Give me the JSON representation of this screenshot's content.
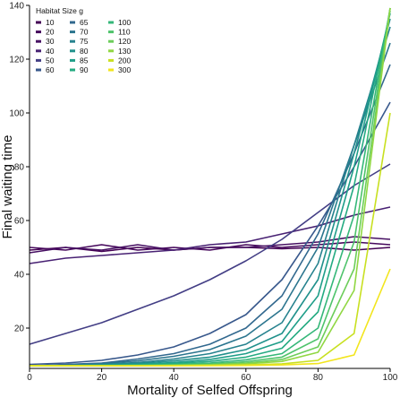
{
  "chart_data": {
    "type": "line",
    "xlabel": "Mortality of Selfed Offspring",
    "ylabel": "Final waiting time",
    "xlim": [
      0,
      100
    ],
    "ylim": [
      5,
      140
    ],
    "xticks": [
      0,
      20,
      40,
      60,
      80,
      100
    ],
    "yticks": [
      20,
      40,
      60,
      80,
      100,
      120,
      140
    ],
    "grid": false,
    "legend": {
      "title": "Habitat Size g",
      "placement": "top-left",
      "columns": 3
    },
    "series": [
      {
        "name": "10",
        "color": "#440154",
        "points": [
          [
            0,
            49
          ],
          [
            10,
            50
          ],
          [
            20,
            48.5
          ],
          [
            30,
            50
          ],
          [
            40,
            49
          ],
          [
            50,
            50
          ],
          [
            60,
            50
          ],
          [
            70,
            49.5
          ],
          [
            80,
            50
          ],
          [
            90,
            49
          ],
          [
            100,
            50
          ]
        ]
      },
      {
        "name": "20",
        "color": "#46085c",
        "points": [
          [
            0,
            50
          ],
          [
            10,
            49
          ],
          [
            20,
            51
          ],
          [
            30,
            49
          ],
          [
            40,
            50
          ],
          [
            50,
            49
          ],
          [
            60,
            51
          ],
          [
            70,
            50
          ],
          [
            80,
            51
          ],
          [
            90,
            52
          ],
          [
            100,
            51
          ]
        ]
      },
      {
        "name": "30",
        "color": "#471063",
        "points": [
          [
            0,
            48
          ],
          [
            10,
            50
          ],
          [
            20,
            49
          ],
          [
            30,
            51
          ],
          [
            40,
            49
          ],
          [
            50,
            50
          ],
          [
            60,
            50
          ],
          [
            70,
            51
          ],
          [
            80,
            52
          ],
          [
            90,
            54
          ],
          [
            100,
            53
          ]
        ]
      },
      {
        "name": "40",
        "color": "#482173",
        "points": [
          [
            0,
            44
          ],
          [
            10,
            46
          ],
          [
            20,
            47
          ],
          [
            30,
            48
          ],
          [
            40,
            49
          ],
          [
            50,
            51
          ],
          [
            60,
            52
          ],
          [
            70,
            55
          ],
          [
            80,
            58
          ],
          [
            90,
            62
          ],
          [
            100,
            65
          ]
        ]
      },
      {
        "name": "50",
        "color": "#433e85",
        "points": [
          [
            0,
            14
          ],
          [
            10,
            18
          ],
          [
            20,
            22
          ],
          [
            30,
            27
          ],
          [
            40,
            32
          ],
          [
            50,
            38
          ],
          [
            60,
            45
          ],
          [
            70,
            53
          ],
          [
            80,
            63
          ],
          [
            90,
            73
          ],
          [
            100,
            81
          ]
        ]
      },
      {
        "name": "60",
        "color": "#38588c",
        "points": [
          [
            0,
            6.5
          ],
          [
            10,
            7
          ],
          [
            20,
            8
          ],
          [
            30,
            10
          ],
          [
            40,
            13
          ],
          [
            50,
            18
          ],
          [
            60,
            25
          ],
          [
            70,
            38
          ],
          [
            80,
            58
          ],
          [
            90,
            80
          ],
          [
            100,
            104
          ]
        ]
      },
      {
        "name": "65",
        "color": "#31688e",
        "points": [
          [
            0,
            6
          ],
          [
            10,
            6.5
          ],
          [
            20,
            7
          ],
          [
            30,
            8.5
          ],
          [
            40,
            10.5
          ],
          [
            50,
            14
          ],
          [
            60,
            20
          ],
          [
            70,
            32
          ],
          [
            80,
            55
          ],
          [
            90,
            85
          ],
          [
            100,
            118
          ]
        ]
      },
      {
        "name": "70",
        "color": "#2b758e",
        "points": [
          [
            0,
            6
          ],
          [
            10,
            6.2
          ],
          [
            20,
            6.8
          ],
          [
            30,
            7.8
          ],
          [
            40,
            9.5
          ],
          [
            50,
            12
          ],
          [
            60,
            17
          ],
          [
            70,
            27
          ],
          [
            80,
            50
          ],
          [
            90,
            88
          ],
          [
            100,
            126
          ]
        ]
      },
      {
        "name": "75",
        "color": "#26828e",
        "points": [
          [
            0,
            6
          ],
          [
            10,
            6.1
          ],
          [
            20,
            6.5
          ],
          [
            30,
            7.2
          ],
          [
            40,
            8.5
          ],
          [
            50,
            10.5
          ],
          [
            60,
            14
          ],
          [
            70,
            22
          ],
          [
            80,
            44
          ],
          [
            90,
            88
          ],
          [
            100,
            132
          ]
        ]
      },
      {
        "name": "80",
        "color": "#21918c",
        "points": [
          [
            0,
            6
          ],
          [
            10,
            6
          ],
          [
            20,
            6.3
          ],
          [
            30,
            6.8
          ],
          [
            40,
            7.8
          ],
          [
            50,
            9.2
          ],
          [
            60,
            12
          ],
          [
            70,
            18
          ],
          [
            80,
            38
          ],
          [
            90,
            85
          ],
          [
            100,
            135
          ]
        ]
      },
      {
        "name": "85",
        "color": "#1f9e89",
        "points": [
          [
            0,
            6
          ],
          [
            10,
            6
          ],
          [
            20,
            6.2
          ],
          [
            30,
            6.5
          ],
          [
            40,
            7.2
          ],
          [
            50,
            8.3
          ],
          [
            60,
            10.5
          ],
          [
            70,
            15
          ],
          [
            80,
            32
          ],
          [
            90,
            80
          ],
          [
            100,
            137
          ]
        ]
      },
      {
        "name": "90",
        "color": "#25ab82",
        "points": [
          [
            0,
            6
          ],
          [
            10,
            6
          ],
          [
            20,
            6.1
          ],
          [
            30,
            6.3
          ],
          [
            40,
            6.8
          ],
          [
            50,
            7.6
          ],
          [
            60,
            9.2
          ],
          [
            70,
            12.5
          ],
          [
            80,
            26
          ],
          [
            90,
            73
          ],
          [
            100,
            138
          ]
        ]
      },
      {
        "name": "100",
        "color": "#35b779",
        "points": [
          [
            0,
            6
          ],
          [
            10,
            6
          ],
          [
            20,
            6
          ],
          [
            30,
            6.2
          ],
          [
            40,
            6.5
          ],
          [
            50,
            7
          ],
          [
            60,
            8.2
          ],
          [
            70,
            10.5
          ],
          [
            80,
            20
          ],
          [
            90,
            62
          ],
          [
            100,
            139
          ]
        ]
      },
      {
        "name": "110",
        "color": "#4ec36b",
        "points": [
          [
            0,
            6
          ],
          [
            10,
            6
          ],
          [
            20,
            6
          ],
          [
            30,
            6.1
          ],
          [
            40,
            6.3
          ],
          [
            50,
            6.6
          ],
          [
            60,
            7.5
          ],
          [
            70,
            9.2
          ],
          [
            80,
            16
          ],
          [
            90,
            52
          ],
          [
            100,
            139
          ]
        ]
      },
      {
        "name": "120",
        "color": "#6ccd5a",
        "points": [
          [
            0,
            6
          ],
          [
            10,
            6
          ],
          [
            20,
            6
          ],
          [
            30,
            6
          ],
          [
            40,
            6.2
          ],
          [
            50,
            6.4
          ],
          [
            60,
            7
          ],
          [
            70,
            8.3
          ],
          [
            80,
            13
          ],
          [
            90,
            42
          ],
          [
            100,
            139
          ]
        ]
      },
      {
        "name": "130",
        "color": "#90d743",
        "points": [
          [
            0,
            6
          ],
          [
            10,
            6
          ],
          [
            20,
            6
          ],
          [
            30,
            6
          ],
          [
            40,
            6.1
          ],
          [
            50,
            6.3
          ],
          [
            60,
            6.7
          ],
          [
            70,
            7.6
          ],
          [
            80,
            11
          ],
          [
            90,
            34
          ],
          [
            100,
            139
          ]
        ]
      },
      {
        "name": "200",
        "color": "#c8e020",
        "points": [
          [
            0,
            6
          ],
          [
            10,
            6
          ],
          [
            20,
            6
          ],
          [
            30,
            6
          ],
          [
            40,
            6
          ],
          [
            50,
            6.1
          ],
          [
            60,
            6.3
          ],
          [
            70,
            6.7
          ],
          [
            80,
            8
          ],
          [
            90,
            18
          ],
          [
            100,
            100
          ]
        ]
      },
      {
        "name": "300",
        "color": "#f2e51d",
        "points": [
          [
            0,
            6
          ],
          [
            10,
            6
          ],
          [
            20,
            6
          ],
          [
            30,
            6
          ],
          [
            40,
            6
          ],
          [
            50,
            6
          ],
          [
            60,
            6.1
          ],
          [
            70,
            6.3
          ],
          [
            80,
            6.8
          ],
          [
            90,
            10
          ],
          [
            100,
            42
          ]
        ]
      }
    ]
  }
}
